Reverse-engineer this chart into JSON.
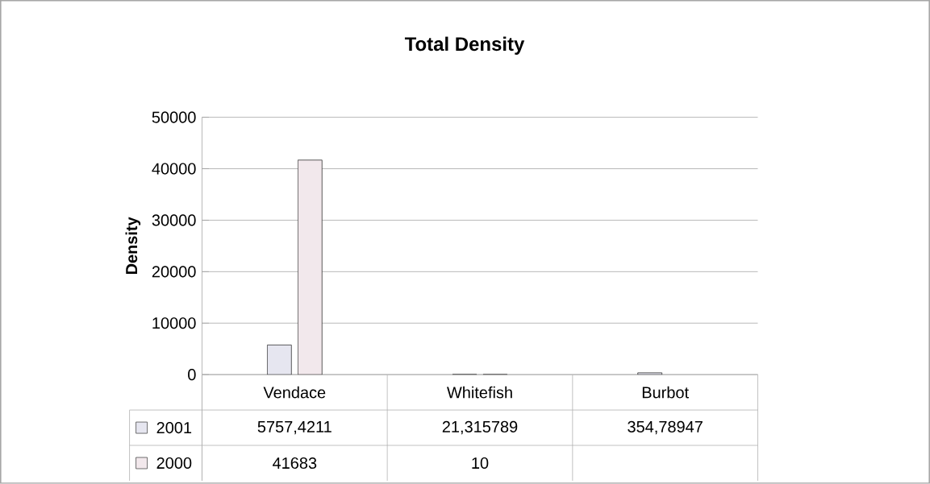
{
  "chart_data": {
    "type": "bar",
    "title": "Total Density",
    "ylabel": "Density",
    "categories": [
      "Vendace",
      "Whitefish",
      "Burbot"
    ],
    "series": [
      {
        "name": "2001",
        "color": "#e6e6f0",
        "values": [
          5757.4211,
          21.315789,
          354.78947
        ],
        "value_labels": [
          "5757,4211",
          "21,315789",
          "354,78947"
        ]
      },
      {
        "name": "2000",
        "color": "#f2e8ec",
        "values": [
          41683,
          10,
          null
        ],
        "value_labels": [
          "41683",
          "10",
          null
        ]
      }
    ],
    "ylim": [
      0,
      50000
    ],
    "yticks": [
      0,
      10000,
      20000,
      30000,
      40000,
      50000
    ],
    "grid": "y",
    "legend": "bottom"
  }
}
